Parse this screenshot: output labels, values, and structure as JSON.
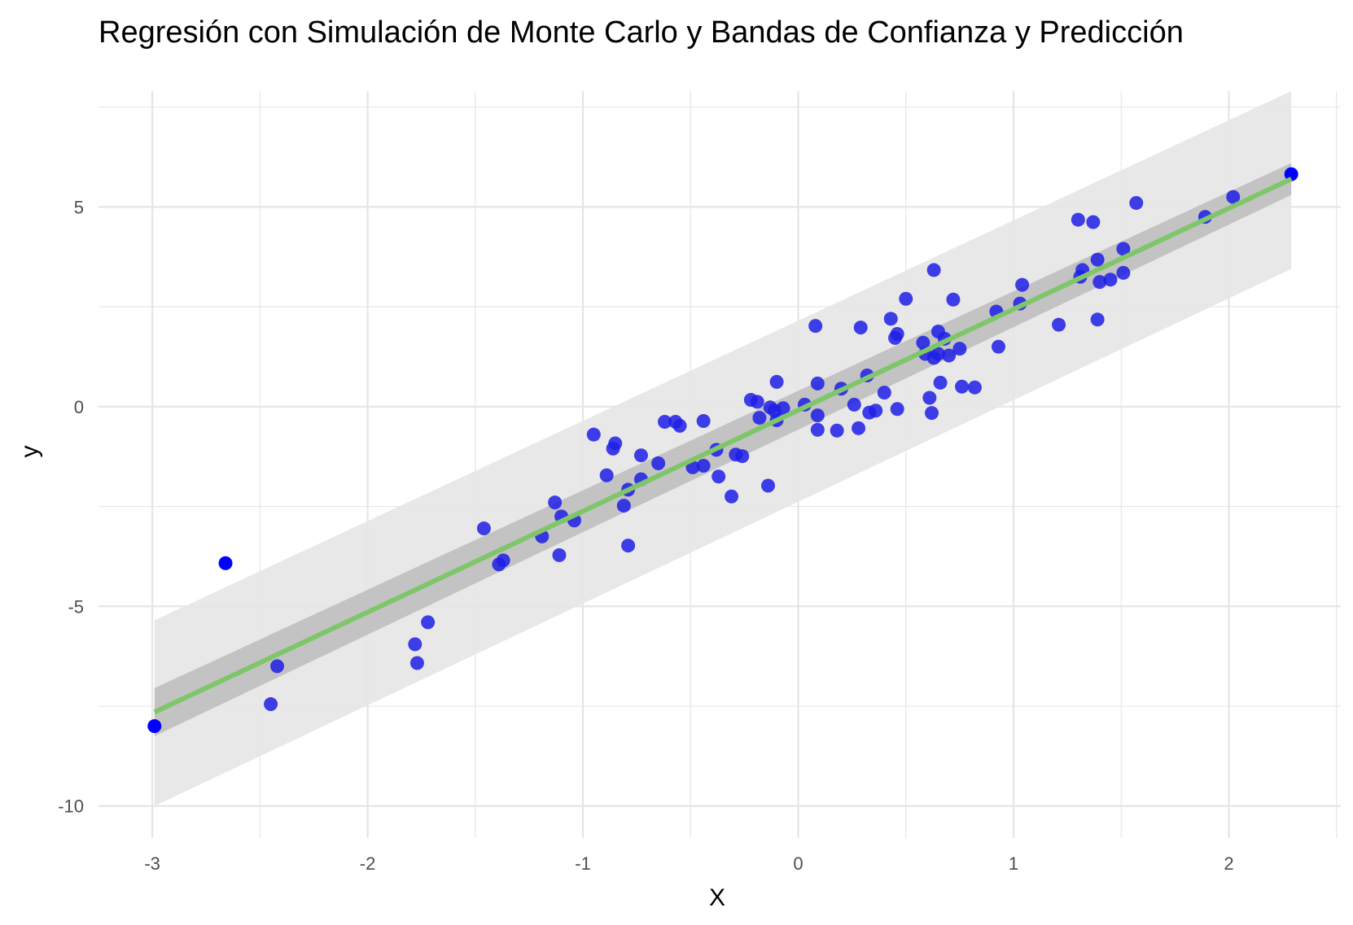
{
  "chart_data": {
    "type": "scatter",
    "title": "Regresión con Simulación de Monte Carlo y Bandas de Confianza y Predicción",
    "xlabel": "X",
    "ylabel": "y",
    "xlim": [
      -3.25,
      2.52
    ],
    "ylim": [
      -10.8,
      7.9
    ],
    "x_ticks": [
      -3,
      -2,
      -1,
      0,
      1,
      2
    ],
    "y_ticks": [
      -10,
      -5,
      0,
      5
    ],
    "grid": true,
    "colors": {
      "points": "#1f1fe6",
      "points_highlight": "#0000ff",
      "fit_line": "#7fc66a",
      "confidence_band": "#b3b3b3",
      "prediction_band": "#e6e6e6",
      "grid": "#e5e5e5"
    },
    "fit_line": {
      "x": [
        -2.99,
        2.29
      ],
      "y": [
        -7.65,
        5.7
      ]
    },
    "confidence_band": {
      "x": [
        -2.99,
        2.29
      ],
      "lower": [
        -8.25,
        5.3
      ],
      "upper": [
        -7.05,
        6.1
      ]
    },
    "prediction_band": {
      "x": [
        -2.99,
        2.29
      ],
      "lower": [
        -10.0,
        3.45
      ],
      "upper": [
        -5.35,
        7.9
      ]
    },
    "highlight_points": [
      {
        "x": -2.99,
        "y": -8.0
      },
      {
        "x": -2.66,
        "y": -3.92
      },
      {
        "x": 2.29,
        "y": 5.82
      }
    ],
    "points": [
      {
        "x": -2.45,
        "y": -7.45
      },
      {
        "x": -2.42,
        "y": -6.5
      },
      {
        "x": -1.78,
        "y": -5.95
      },
      {
        "x": -1.77,
        "y": -6.42
      },
      {
        "x": -1.72,
        "y": -5.4
      },
      {
        "x": -1.46,
        "y": -3.05
      },
      {
        "x": -1.39,
        "y": -3.95
      },
      {
        "x": -1.37,
        "y": -3.85
      },
      {
        "x": -1.19,
        "y": -3.25
      },
      {
        "x": -1.13,
        "y": -2.4
      },
      {
        "x": -1.11,
        "y": -3.72
      },
      {
        "x": -1.1,
        "y": -2.75
      },
      {
        "x": -1.04,
        "y": -2.85
      },
      {
        "x": -0.95,
        "y": -0.7
      },
      {
        "x": -0.89,
        "y": -1.72
      },
      {
        "x": -0.86,
        "y": -1.05
      },
      {
        "x": -0.85,
        "y": -0.92
      },
      {
        "x": -0.81,
        "y": -2.48
      },
      {
        "x": -0.79,
        "y": -2.08
      },
      {
        "x": -0.79,
        "y": -3.48
      },
      {
        "x": -0.73,
        "y": -1.82
      },
      {
        "x": -0.73,
        "y": -1.22
      },
      {
        "x": -0.65,
        "y": -1.42
      },
      {
        "x": -0.62,
        "y": -0.38
      },
      {
        "x": -0.57,
        "y": -0.38
      },
      {
        "x": -0.55,
        "y": -0.48
      },
      {
        "x": -0.49,
        "y": -1.52
      },
      {
        "x": -0.44,
        "y": -1.48
      },
      {
        "x": -0.44,
        "y": -0.36
      },
      {
        "x": -0.38,
        "y": -1.08
      },
      {
        "x": -0.37,
        "y": -1.75
      },
      {
        "x": -0.31,
        "y": -2.25
      },
      {
        "x": -0.29,
        "y": -1.2
      },
      {
        "x": -0.26,
        "y": -1.24
      },
      {
        "x": -0.22,
        "y": 0.17
      },
      {
        "x": -0.19,
        "y": 0.12
      },
      {
        "x": -0.18,
        "y": -0.28
      },
      {
        "x": -0.14,
        "y": -1.98
      },
      {
        "x": -0.13,
        "y": -0.02
      },
      {
        "x": -0.11,
        "y": -0.1
      },
      {
        "x": -0.1,
        "y": 0.62
      },
      {
        "x": -0.1,
        "y": -0.34
      },
      {
        "x": -0.07,
        "y": -0.04
      },
      {
        "x": 0.03,
        "y": 0.05
      },
      {
        "x": 0.08,
        "y": 2.02
      },
      {
        "x": 0.09,
        "y": 0.58
      },
      {
        "x": 0.09,
        "y": -0.22
      },
      {
        "x": 0.09,
        "y": -0.58
      },
      {
        "x": 0.18,
        "y": -0.6
      },
      {
        "x": 0.2,
        "y": 0.45
      },
      {
        "x": 0.26,
        "y": 0.05
      },
      {
        "x": 0.28,
        "y": -0.54
      },
      {
        "x": 0.29,
        "y": 1.98
      },
      {
        "x": 0.32,
        "y": 0.78
      },
      {
        "x": 0.33,
        "y": -0.15
      },
      {
        "x": 0.36,
        "y": -0.1
      },
      {
        "x": 0.4,
        "y": 0.35
      },
      {
        "x": 0.43,
        "y": 2.2
      },
      {
        "x": 0.45,
        "y": 1.72
      },
      {
        "x": 0.46,
        "y": 1.82
      },
      {
        "x": 0.46,
        "y": -0.06
      },
      {
        "x": 0.5,
        "y": 2.7
      },
      {
        "x": 0.58,
        "y": 1.6
      },
      {
        "x": 0.59,
        "y": 1.32
      },
      {
        "x": 0.61,
        "y": 0.22
      },
      {
        "x": 0.62,
        "y": -0.16
      },
      {
        "x": 0.63,
        "y": 3.42
      },
      {
        "x": 0.63,
        "y": 1.22
      },
      {
        "x": 0.65,
        "y": 1.88
      },
      {
        "x": 0.65,
        "y": 1.32
      },
      {
        "x": 0.66,
        "y": 0.6
      },
      {
        "x": 0.68,
        "y": 1.7
      },
      {
        "x": 0.7,
        "y": 1.28
      },
      {
        "x": 0.72,
        "y": 2.68
      },
      {
        "x": 0.75,
        "y": 1.45
      },
      {
        "x": 0.76,
        "y": 0.5
      },
      {
        "x": 0.82,
        "y": 0.48
      },
      {
        "x": 0.92,
        "y": 2.38
      },
      {
        "x": 0.93,
        "y": 1.5
      },
      {
        "x": 1.03,
        "y": 2.58
      },
      {
        "x": 1.04,
        "y": 3.05
      },
      {
        "x": 1.21,
        "y": 2.05
      },
      {
        "x": 1.3,
        "y": 4.68
      },
      {
        "x": 1.31,
        "y": 3.25
      },
      {
        "x": 1.32,
        "y": 3.42
      },
      {
        "x": 1.37,
        "y": 4.62
      },
      {
        "x": 1.39,
        "y": 3.68
      },
      {
        "x": 1.39,
        "y": 2.18
      },
      {
        "x": 1.4,
        "y": 3.12
      },
      {
        "x": 1.45,
        "y": 3.18
      },
      {
        "x": 1.51,
        "y": 3.95
      },
      {
        "x": 1.51,
        "y": 3.35
      },
      {
        "x": 1.57,
        "y": 5.1
      },
      {
        "x": 1.89,
        "y": 4.75
      },
      {
        "x": 2.02,
        "y": 5.25
      }
    ]
  }
}
